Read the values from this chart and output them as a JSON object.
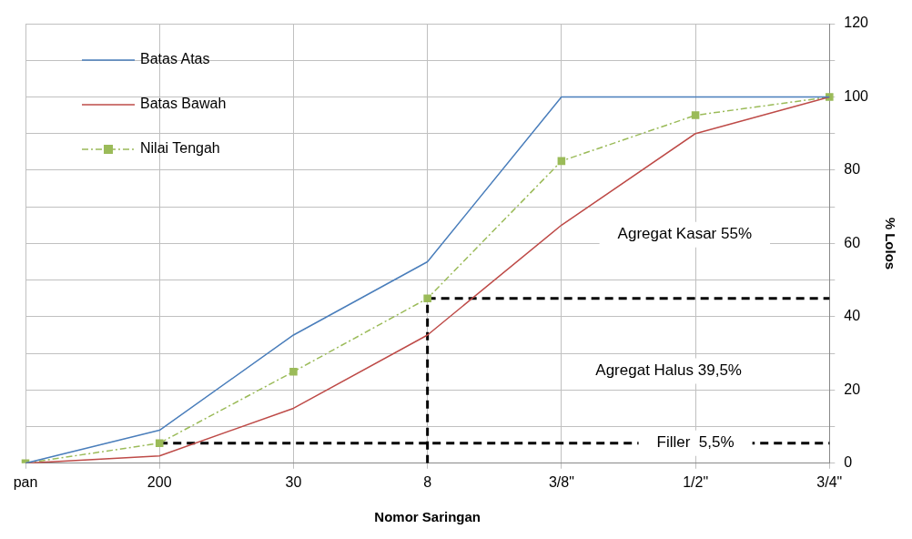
{
  "chart_data": {
    "type": "line",
    "xlabel": "Nomor Saringan",
    "ylabel": "% Lolos",
    "categories": [
      "pan",
      "200",
      "30",
      "8",
      "3/8\"",
      "1/2\"",
      "3/4\""
    ],
    "series": [
      {
        "name": "Batas Atas",
        "color": "#4a7ebb",
        "values": [
          0,
          9,
          35,
          55,
          100,
          100,
          100
        ],
        "marker": "none",
        "line_style": "solid"
      },
      {
        "name": "Batas Bawah",
        "color": "#be4b48",
        "values": [
          0,
          2,
          15,
          35,
          65,
          90,
          100
        ],
        "marker": "none",
        "line_style": "solid"
      },
      {
        "name": "Nilai Tengah",
        "color": "#9bbb59",
        "values": [
          0,
          5.5,
          25,
          45,
          82.5,
          95,
          100
        ],
        "marker": "square",
        "line_style": "dashed"
      },
      {
        "color": "#000000",
        "x": [
          "8",
          "3/4\""
        ],
        "values": [
          45,
          45
        ],
        "marker": "none",
        "line_style": "dashed"
      },
      {
        "color": "#000000",
        "x": [
          "200",
          "3/4\""
        ],
        "values": [
          5.5,
          5.5
        ],
        "marker": "none",
        "line_style": "dashed"
      },
      {
        "color": "#000000",
        "x": [
          "8",
          "8"
        ],
        "values": [
          0,
          45
        ],
        "marker": "none",
        "line_style": "dashed"
      }
    ],
    "ylim": [
      0,
      120
    ],
    "yticks": [
      0,
      {
        "value": 10,
        "label": null
      },
      20,
      {
        "value": 30,
        "label": null
      },
      40,
      {
        "value": 50,
        "label": null
      },
      60,
      {
        "value": 70,
        "label": null
      },
      80,
      {
        "value": 90,
        "label": null
      },
      100,
      {
        "value": 110,
        "label": null
      },
      120
    ],
    "grid": true,
    "legend": "top left",
    "annotations": [
      "Agregat Kasar 55%",
      "Agregat Halus 39,5%",
      {
        "text": "Filler  5,5%",
        "x": "1/2\"",
        "y": 5.5
      }
    ]
  }
}
